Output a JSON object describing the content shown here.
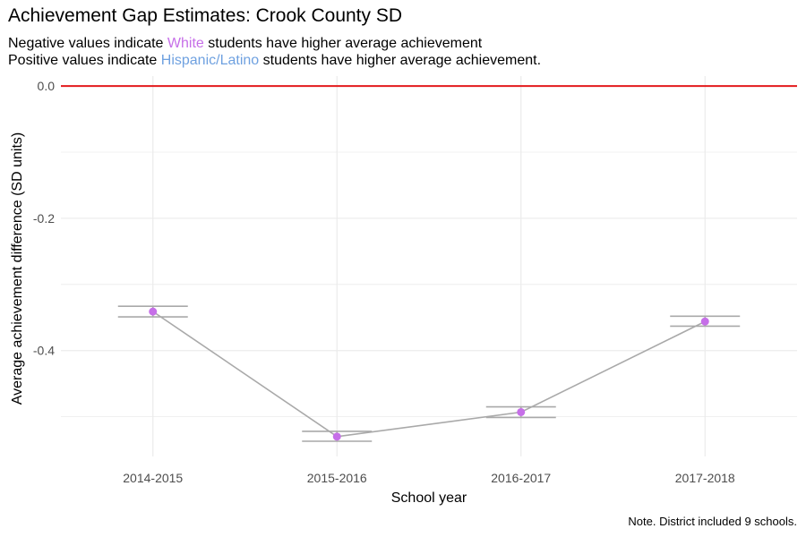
{
  "chart_data": {
    "type": "line",
    "title": "Achievement Gap Estimates: Crook County SD",
    "subtitle": {
      "line1": {
        "before": "Negative values indicate ",
        "highlight": "White",
        "after": " students have higher average achievement"
      },
      "line2": {
        "before": "Positive values indicate ",
        "highlight": "Hispanic/Latino",
        "after": " students have higher average achievement."
      }
    },
    "xlabel": "School year",
    "ylabel": "Average achievement difference (SD units)",
    "categories": [
      "2014-2015",
      "2015-2016",
      "2016-2017",
      "2017-2018"
    ],
    "values": [
      -0.341,
      -0.53,
      -0.493,
      -0.356
    ],
    "error_low": [
      -0.349,
      -0.537,
      -0.501,
      -0.363
    ],
    "error_high": [
      -0.333,
      -0.522,
      -0.485,
      -0.348
    ],
    "ylim": [
      -0.56,
      0.015
    ],
    "yticks": [
      0.0,
      -0.2,
      -0.4
    ],
    "ytick_labels": [
      "0.0",
      "-0.2",
      "-0.4"
    ],
    "reference_line": 0,
    "grid": true,
    "caption": "Note. District included 9 schools.",
    "colors": {
      "point": "#c66fe8",
      "line": "#a9a9a9",
      "errorbar": "#a9a9a9",
      "reference": "#e31a1c",
      "white_label": "#c66fe8",
      "hispanic_label": "#6fa1e0",
      "grid": "#ebebeb"
    }
  }
}
